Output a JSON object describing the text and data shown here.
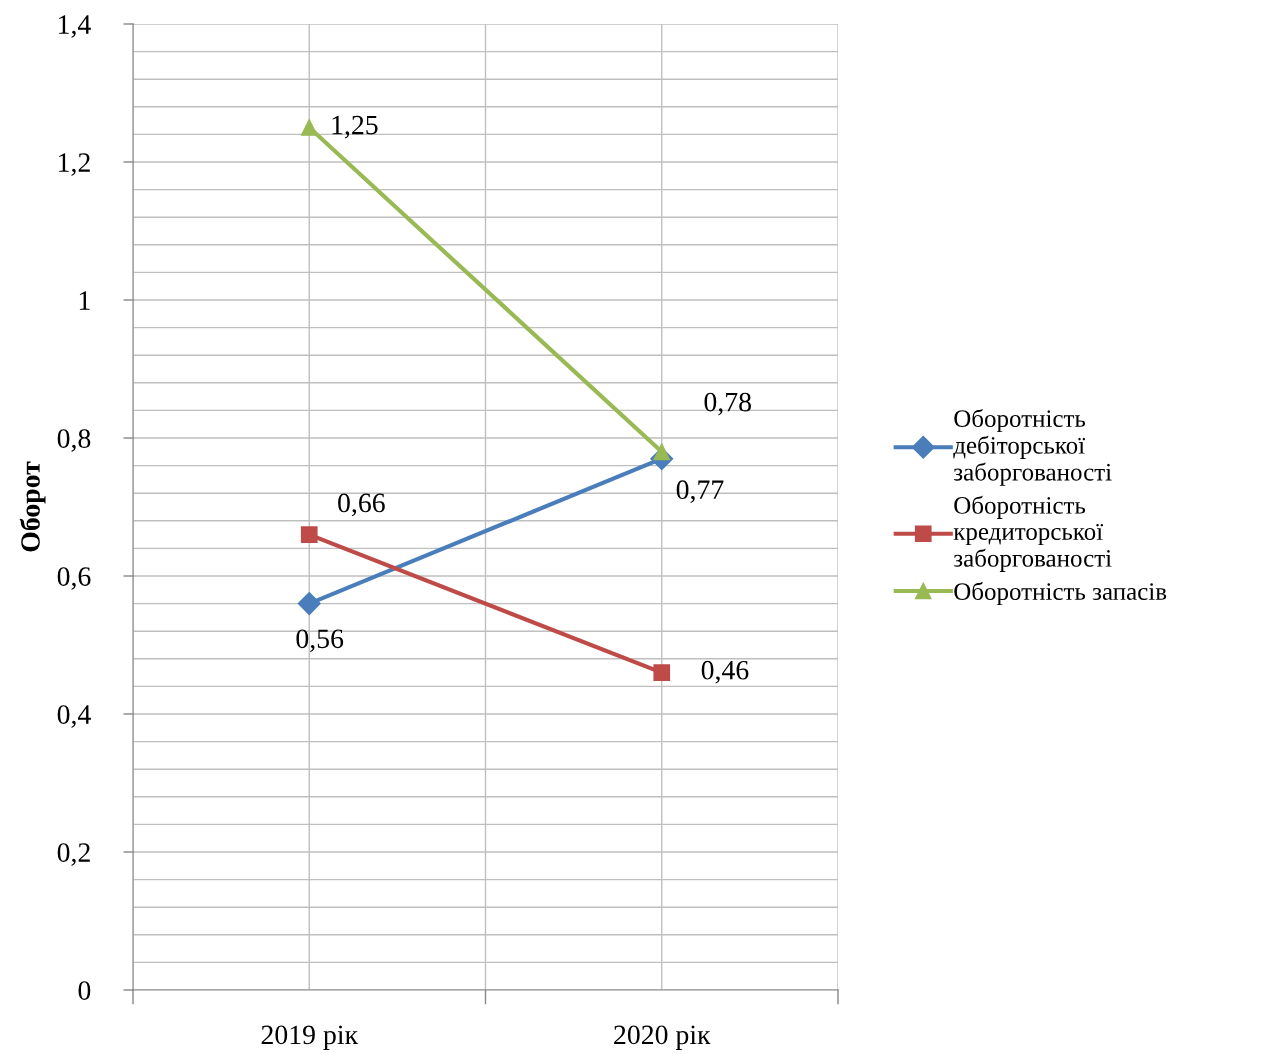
{
  "chart_data": {
    "type": "line",
    "ylabel": "Оборот",
    "categories": [
      "2019 рік",
      "2020 рік"
    ],
    "series": [
      {
        "name": "Оборотність дебіторської заборгованості",
        "color": "#4a7ebb",
        "marker": "diamond",
        "values": [
          0.56,
          0.77
        ],
        "value_labels": [
          "0,56",
          "0,77"
        ]
      },
      {
        "name": "Оборотність кредиторської заборгованості",
        "color": "#be4b48",
        "marker": "square",
        "values": [
          0.66,
          0.46
        ],
        "value_labels": [
          "0,66",
          "0,46"
        ]
      },
      {
        "name": "Оборотність запасів",
        "color": "#98b954",
        "marker": "triangle",
        "values": [
          1.25,
          0.78
        ],
        "value_labels": [
          "1,25",
          "0,78"
        ]
      }
    ],
    "ylim": [
      0,
      1.4
    ],
    "yticks": [
      {
        "value": 0,
        "label": "0"
      },
      {
        "value": 0.04,
        "label": null
      },
      {
        "value": 0.08,
        "label": null
      },
      {
        "value": 0.12,
        "label": null
      },
      {
        "value": 0.16,
        "label": null
      },
      {
        "value": 0.2,
        "label": "0,2"
      },
      {
        "value": 0.24,
        "label": null
      },
      {
        "value": 0.28,
        "label": null
      },
      {
        "value": 0.32,
        "label": null
      },
      {
        "value": 0.36,
        "label": null
      },
      {
        "value": 0.4,
        "label": "0,4"
      },
      {
        "value": 0.44,
        "label": null
      },
      {
        "value": 0.48,
        "label": null
      },
      {
        "value": 0.52,
        "label": null
      },
      {
        "value": 0.56,
        "label": null
      },
      {
        "value": 0.6,
        "label": "0,6"
      },
      {
        "value": 0.64,
        "label": null
      },
      {
        "value": 0.68,
        "label": null
      },
      {
        "value": 0.72,
        "label": null
      },
      {
        "value": 0.76,
        "label": null
      },
      {
        "value": 0.8,
        "label": "0,8"
      },
      {
        "value": 0.84,
        "label": null
      },
      {
        "value": 0.88,
        "label": null
      },
      {
        "value": 0.92,
        "label": null
      },
      {
        "value": 0.96,
        "label": null
      },
      {
        "value": 1,
        "label": "1"
      },
      {
        "value": 1.04,
        "label": null
      },
      {
        "value": 1.08,
        "label": null
      },
      {
        "value": 1.12,
        "label": null
      },
      {
        "value": 1.16,
        "label": null
      },
      {
        "value": 1.2,
        "label": "1,2"
      },
      {
        "value": 1.24,
        "label": null
      },
      {
        "value": 1.28,
        "label": null
      },
      {
        "value": 1.32,
        "label": null
      },
      {
        "value": 1.36,
        "label": null
      },
      {
        "value": 1.4,
        "label": "1,4"
      }
    ],
    "grid": true,
    "legend": "right",
    "line_style": "solid"
  }
}
